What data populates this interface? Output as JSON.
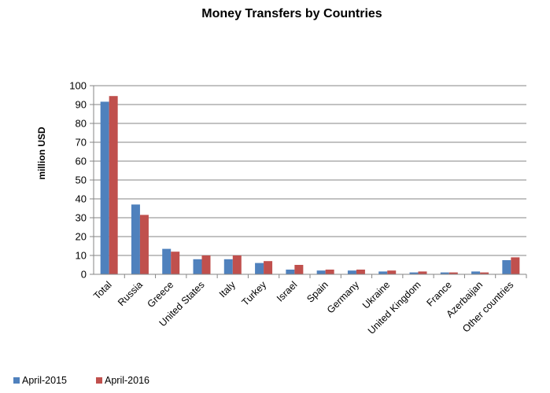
{
  "chart_data": {
    "type": "bar",
    "title": "Money Transfers by Countries",
    "ylabel": "million USD",
    "xlabel": "",
    "ylim": [
      0,
      100
    ],
    "yticks": [
      0,
      10,
      20,
      30,
      40,
      50,
      60,
      70,
      80,
      90,
      100
    ],
    "grid": true,
    "legend_position": "bottom-left",
    "categories": [
      "Total",
      "Russia",
      "Greece",
      "United States",
      "Italy",
      "Turkey",
      "Israel",
      "Spain",
      "Germany",
      "Ukraine",
      "United Kingdom",
      "France",
      "Azerbaijan",
      "Other countries"
    ],
    "series": [
      {
        "name": "April-2015",
        "color": "#4F81BD",
        "values": [
          91.5,
          37,
          13.5,
          8,
          8,
          6,
          2.5,
          2,
          2,
          1.5,
          1,
          1,
          1.5,
          7.5
        ]
      },
      {
        "name": "April-2016",
        "color": "#C0504D",
        "values": [
          94.5,
          31.5,
          12,
          10,
          10,
          7,
          5,
          2.5,
          2.5,
          2,
          1.5,
          1,
          1,
          9
        ]
      }
    ]
  }
}
